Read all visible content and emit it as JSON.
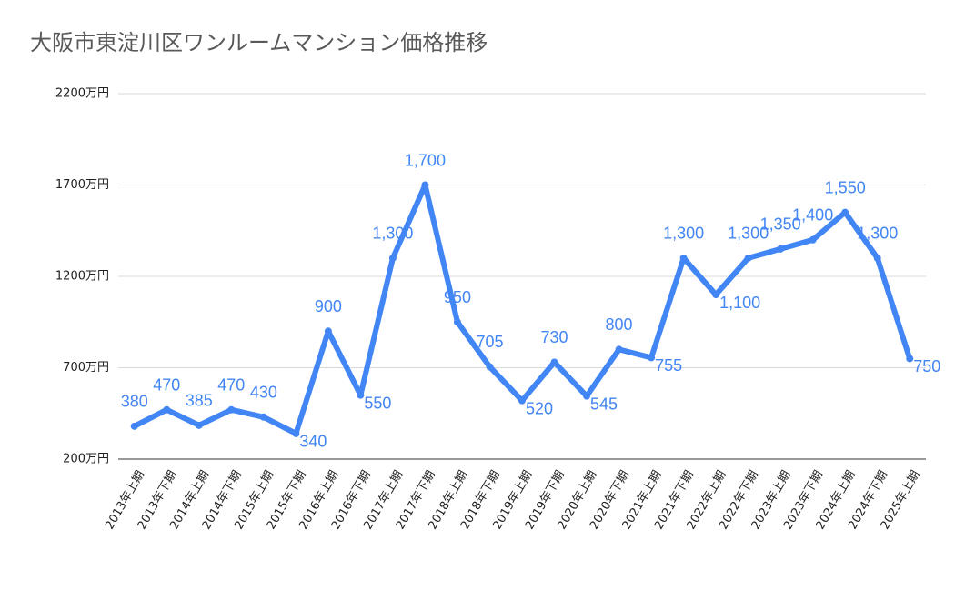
{
  "chart_data": {
    "type": "line",
    "title": "大阪市東淀川区ワンルームマンション価格推移",
    "categories": [
      "2013年上期",
      "2013年下期",
      "2014年上期",
      "2014年下期",
      "2015年上期",
      "2015年下期",
      "2016年上期",
      "2016年下期",
      "2017年上期",
      "2017年下期",
      "2018年上期",
      "2018年下期",
      "2019年上期",
      "2019年下期",
      "2020年上期",
      "2020年下期",
      "2021年上期",
      "2021年下期",
      "2022年上期",
      "2022年下期",
      "2023年上期",
      "2023年下期",
      "2024年上期",
      "2024年下期",
      "2025年上期"
    ],
    "series": [
      {
        "color": "#4285f4",
        "values": [
          380,
          470,
          385,
          470,
          430,
          340,
          900,
          550,
          1300,
          1700,
          950,
          705,
          520,
          730,
          545,
          800,
          755,
          1300,
          1100,
          1300,
          1350,
          1400,
          1550,
          1300,
          750
        ],
        "value_labels": [
          "380",
          "470",
          "385",
          "470",
          "430",
          "340",
          "900",
          "550",
          "1,300",
          "1,700",
          "950",
          "705",
          "520",
          "730",
          "545",
          "800",
          "755",
          "1,300",
          "1,100",
          "1,300",
          "1,350",
          "1,400",
          "1,550",
          "1,300",
          "750"
        ]
      }
    ],
    "ylim": [
      200,
      2200
    ],
    "yticks": [
      {
        "value": 200,
        "label": "200万円"
      },
      {
        "value": 700,
        "label": "700万円"
      },
      {
        "value": 1200,
        "label": "1200万円"
      },
      {
        "value": 1700,
        "label": "1700万円"
      },
      {
        "value": 2200,
        "label": "2200万円"
      }
    ],
    "grid": true
  }
}
